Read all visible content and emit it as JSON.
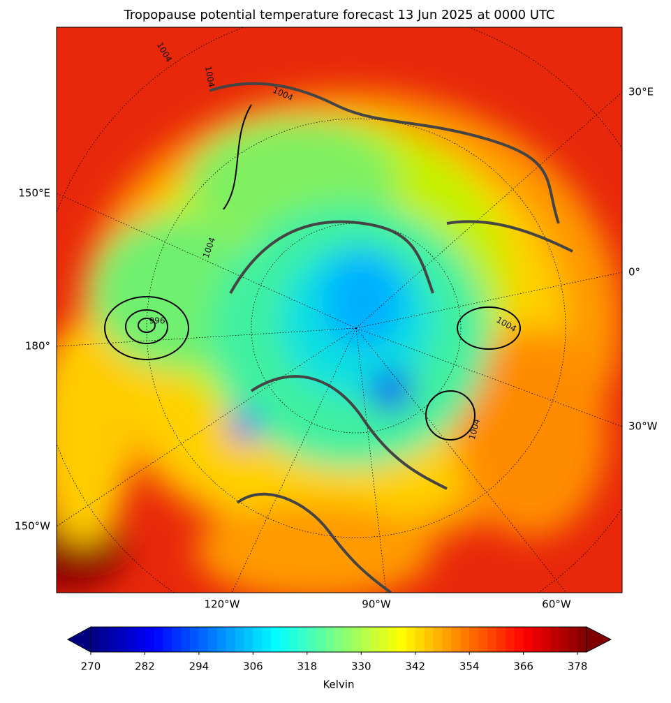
{
  "title": "Tropopause potential temperature forecast 13 Jun 2025 at 0000 UTC",
  "map": {
    "graticule_labels_right": [
      "30°E",
      "0°",
      "30°W"
    ],
    "graticule_labels_left": [
      "150°E",
      "180°",
      "150°W"
    ],
    "graticule_labels_bottom": [
      "120°W",
      "90°W",
      "60°W"
    ],
    "contour_labels": [
      "1004",
      "1004",
      "1004",
      "1004",
      "1004",
      "996",
      "1004"
    ]
  },
  "colorbar": {
    "label": "Kelvin",
    "clim": [
      270,
      380
    ],
    "step": 2,
    "ticks": [
      270,
      282,
      294,
      306,
      318,
      330,
      342,
      354,
      366,
      378
    ]
  }
}
